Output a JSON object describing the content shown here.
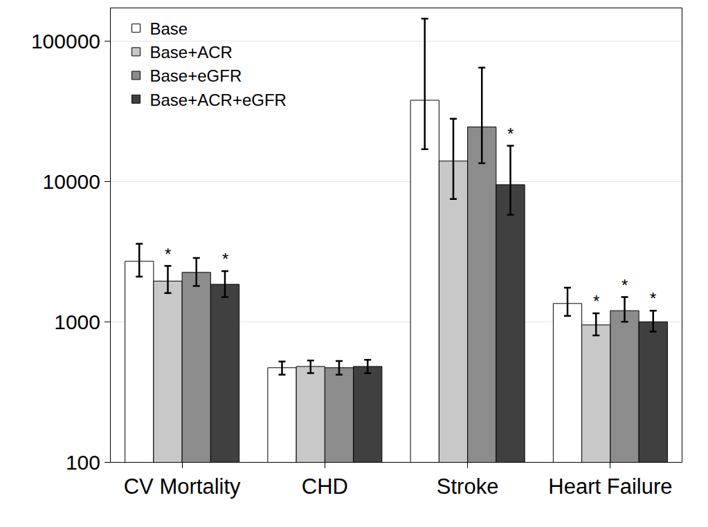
{
  "chart_data": {
    "type": "bar",
    "categories": [
      "CV Mortality",
      "CHD",
      "Stroke",
      "Heart Failure"
    ],
    "series": [
      {
        "name": "Base",
        "color": "#ffffff",
        "values": [
          2700,
          470,
          38000,
          1350
        ],
        "lower": [
          2100,
          420,
          17000,
          1100
        ],
        "upper": [
          3600,
          520,
          145000,
          1750
        ]
      },
      {
        "name": "Base+ACR",
        "color": "#c8c8c8",
        "values": [
          1950,
          480,
          14000,
          950
        ],
        "lower": [
          1600,
          430,
          7500,
          800
        ],
        "upper": [
          2500,
          530,
          28000,
          1150
        ]
      },
      {
        "name": "Base+eGFR",
        "color": "#8c8c8c",
        "values": [
          2250,
          470,
          24500,
          1200
        ],
        "lower": [
          1800,
          420,
          13500,
          1000
        ],
        "upper": [
          2850,
          525,
          65000,
          1500
        ]
      },
      {
        "name": "Base+ACR+eGFR",
        "color": "#404040",
        "values": [
          1850,
          480,
          9500,
          1000
        ],
        "lower": [
          1500,
          430,
          5800,
          850
        ],
        "upper": [
          2300,
          535,
          18000,
          1200
        ]
      }
    ],
    "annotations": [
      {
        "category": "CV Mortality",
        "series": "Base+ACR",
        "text": "*"
      },
      {
        "category": "CV Mortality",
        "series": "Base+ACR+eGFR",
        "text": "*"
      },
      {
        "category": "Stroke",
        "series": "Base+ACR+eGFR",
        "text": "*"
      },
      {
        "category": "Heart Failure",
        "series": "Base+ACR",
        "text": "*"
      },
      {
        "category": "Heart Failure",
        "series": "Base+eGFR",
        "text": "*"
      },
      {
        "category": "Heart Failure",
        "series": "Base+ACR+eGFR",
        "text": "*"
      }
    ],
    "ylim": [
      100,
      172000
    ],
    "yticks": [
      100,
      1000,
      10000,
      100000
    ],
    "log": "y",
    "grid": true,
    "legend": "top-left"
  }
}
